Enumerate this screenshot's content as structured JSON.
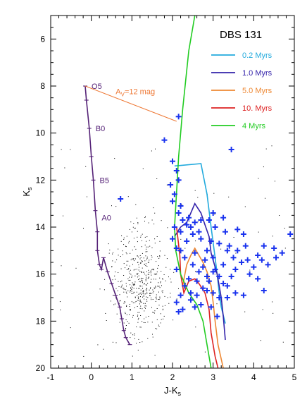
{
  "chart_data": {
    "type": "scatter",
    "title": "DBS 131",
    "xlabel": "J-K",
    "xlabel_sub": "s",
    "ylabel": "K",
    "ylabel_sub": "s",
    "xlim": [
      -1,
      5
    ],
    "ylim": [
      20,
      5
    ],
    "y_inverted": true,
    "xticks": [
      -1,
      0,
      1,
      2,
      3,
      4,
      5
    ],
    "yticks": [
      6,
      8,
      10,
      12,
      14,
      16,
      18,
      20
    ],
    "grid": false,
    "legend_position": "top-right",
    "series": [
      {
        "name": "0.2 Myrs",
        "color": "#22aadd",
        "kind": "isochrone",
        "points": [
          [
            2.05,
            11.4
          ],
          [
            2.7,
            11.3
          ],
          [
            2.85,
            12.6
          ],
          [
            2.95,
            14.0
          ],
          [
            3.05,
            15.3
          ],
          [
            3.1,
            16.0
          ],
          [
            3.15,
            16.8
          ],
          [
            3.2,
            17.4
          ],
          [
            3.3,
            18.1
          ]
        ]
      },
      {
        "name": "1.0 Myrs",
        "color": "#3322aa",
        "kind": "isochrone",
        "points": [
          [
            2.05,
            14.4
          ],
          [
            2.2,
            14.0
          ],
          [
            2.35,
            13.8
          ],
          [
            2.45,
            13.4
          ],
          [
            2.55,
            13.0
          ],
          [
            2.7,
            13.4
          ],
          [
            2.8,
            13.9
          ],
          [
            2.9,
            14.4
          ],
          [
            2.95,
            15.1
          ],
          [
            3.1,
            16.0
          ],
          [
            3.2,
            17.0
          ],
          [
            3.25,
            17.8
          ],
          [
            3.3,
            18.8
          ]
        ]
      },
      {
        "name": "5.0 Myrs",
        "color": "#ee8833",
        "kind": "isochrone",
        "points": [
          [
            2.25,
            16.5
          ],
          [
            2.35,
            15.6
          ],
          [
            2.45,
            15.2
          ],
          [
            2.55,
            14.9
          ],
          [
            2.65,
            15.2
          ],
          [
            2.75,
            15.5
          ],
          [
            2.85,
            15.9
          ],
          [
            2.95,
            16.5
          ],
          [
            3.0,
            17.2
          ],
          [
            3.05,
            18.0
          ],
          [
            3.12,
            19.0
          ],
          [
            3.25,
            20.0
          ]
        ]
      },
      {
        "name": "10. Myrs",
        "color": "#dd2222",
        "kind": "isochrone",
        "points": [
          [
            2.1,
            14.0
          ],
          [
            2.18,
            15.2
          ],
          [
            2.2,
            16.0
          ],
          [
            2.28,
            16.8
          ],
          [
            2.4,
            16.3
          ],
          [
            2.55,
            16.2
          ],
          [
            2.65,
            16.4
          ],
          [
            2.8,
            16.8
          ],
          [
            2.9,
            17.5
          ],
          [
            2.95,
            18.5
          ],
          [
            3.05,
            19.5
          ],
          [
            3.12,
            20.0
          ]
        ]
      },
      {
        "name": "4 Myrs",
        "color": "#22cc22",
        "kind": "isochrone",
        "points": [
          [
            2.55,
            5.0
          ],
          [
            2.4,
            6.5
          ],
          [
            2.25,
            9.0
          ],
          [
            2.15,
            11.0
          ],
          [
            2.1,
            12.5
          ],
          [
            2.05,
            14.0
          ],
          [
            2.08,
            15.0
          ],
          [
            2.2,
            16.0
          ],
          [
            2.4,
            16.8
          ],
          [
            2.6,
            17.3
          ],
          [
            2.75,
            18.0
          ],
          [
            2.85,
            19.0
          ],
          [
            2.95,
            20.0
          ]
        ]
      }
    ],
    "main_sequence": {
      "color": "#552277",
      "points": [
        [
          -0.15,
          8.0
        ],
        [
          -0.12,
          8.6
        ],
        [
          -0.05,
          9.8
        ],
        [
          0.0,
          11.0
        ],
        [
          0.05,
          12.0
        ],
        [
          0.1,
          13.3
        ],
        [
          0.15,
          14.2
        ],
        [
          0.15,
          15.0
        ],
        [
          0.2,
          15.6
        ],
        [
          0.25,
          15.8
        ],
        [
          0.3,
          15.3
        ],
        [
          0.4,
          15.9
        ],
        [
          0.5,
          16.4
        ],
        [
          0.6,
          16.9
        ],
        [
          0.7,
          17.4
        ],
        [
          0.75,
          17.9
        ],
        [
          0.8,
          18.4
        ],
        [
          0.85,
          18.7
        ],
        [
          0.95,
          19.0
        ]
      ],
      "spectral_labels": [
        {
          "text": "O5",
          "x": -0.15,
          "y": 8.0
        },
        {
          "text": "B0",
          "x": -0.05,
          "y": 9.8
        },
        {
          "text": "B5",
          "x": 0.05,
          "y": 12.0
        },
        {
          "text": "A0",
          "x": 0.1,
          "y": 13.6
        }
      ]
    },
    "reddening_vector": {
      "label": "A_V=12 mag",
      "label_main": "A",
      "label_sub": "V",
      "label_rest": "=12 mag",
      "color": "#ee7733",
      "start": [
        -0.15,
        8.0
      ],
      "end": [
        2.1,
        9.5
      ]
    },
    "cluster_members": {
      "color": "#1a33ee",
      "marker": "plus",
      "points": [
        [
          2.15,
          9.3
        ],
        [
          1.8,
          10.3
        ],
        [
          3.45,
          10.7
        ],
        [
          2.0,
          11.2
        ],
        [
          2.1,
          11.6
        ],
        [
          2.15,
          12.0
        ],
        [
          1.95,
          12.2
        ],
        [
          2.05,
          12.6
        ],
        [
          2.0,
          12.9
        ],
        [
          2.2,
          13.1
        ],
        [
          0.72,
          12.8
        ],
        [
          2.15,
          13.4
        ],
        [
          2.25,
          13.7
        ],
        [
          2.35,
          13.9
        ],
        [
          2.05,
          14.0
        ],
        [
          2.2,
          14.2
        ],
        [
          2.45,
          14.0
        ],
        [
          2.55,
          13.8
        ],
        [
          2.7,
          13.7
        ],
        [
          2.9,
          13.7
        ],
        [
          3.0,
          13.4
        ],
        [
          3.25,
          13.6
        ],
        [
          3.05,
          14.0
        ],
        [
          3.3,
          14.2
        ],
        [
          3.6,
          14.1
        ],
        [
          3.75,
          14.3
        ],
        [
          4.25,
          14.8
        ],
        [
          4.5,
          14.9
        ],
        [
          4.9,
          14.3
        ],
        [
          4.7,
          15.1
        ],
        [
          4.55,
          15.3
        ],
        [
          4.35,
          15.6
        ],
        [
          4.1,
          15.2
        ],
        [
          4.0,
          15.7
        ],
        [
          3.9,
          16.0
        ],
        [
          4.1,
          16.2
        ],
        [
          3.7,
          15.5
        ],
        [
          3.55,
          15.8
        ],
        [
          3.45,
          16.1
        ],
        [
          3.35,
          16.5
        ],
        [
          3.25,
          16.4
        ],
        [
          3.15,
          16.1
        ],
        [
          3.05,
          15.8
        ],
        [
          3.0,
          15.3
        ],
        [
          2.85,
          15.0
        ],
        [
          2.7,
          14.5
        ],
        [
          2.8,
          15.4
        ],
        [
          2.65,
          15.9
        ],
        [
          2.5,
          15.6
        ],
        [
          2.4,
          16.2
        ],
        [
          2.3,
          16.5
        ],
        [
          2.2,
          16.9
        ],
        [
          2.1,
          17.2
        ],
        [
          2.15,
          17.6
        ],
        [
          2.25,
          17.5
        ],
        [
          2.45,
          17.1
        ],
        [
          2.6,
          16.9
        ],
        [
          2.75,
          16.6
        ],
        [
          2.9,
          16.3
        ],
        [
          3.0,
          16.8
        ],
        [
          3.15,
          17.0
        ],
        [
          3.35,
          17.0
        ],
        [
          3.55,
          16.8
        ],
        [
          3.75,
          16.9
        ],
        [
          2.55,
          17.4
        ],
        [
          2.7,
          17.3
        ],
        [
          2.95,
          17.4
        ],
        [
          3.1,
          17.8
        ],
        [
          2.3,
          15.3
        ],
        [
          2.2,
          15.0
        ],
        [
          2.35,
          14.6
        ],
        [
          2.5,
          14.3
        ],
        [
          2.95,
          14.6
        ],
        [
          3.15,
          14.7
        ],
        [
          3.4,
          14.8
        ],
        [
          3.6,
          15.0
        ],
        [
          3.8,
          14.8
        ],
        [
          2.6,
          16.3
        ],
        [
          2.45,
          16.8
        ],
        [
          4.25,
          16.7
        ],
        [
          2.75,
          15.7
        ],
        [
          2.1,
          15.8
        ],
        [
          2.1,
          14.9
        ],
        [
          2.0,
          14.5
        ],
        [
          3.5,
          15.3
        ],
        [
          3.25,
          15.6
        ],
        [
          3.35,
          15.0
        ],
        [
          2.85,
          16.1
        ],
        [
          2.55,
          15.1
        ],
        [
          2.4,
          13.6
        ],
        [
          2.65,
          14.2
        ],
        [
          3.85,
          15.4
        ],
        [
          4.2,
          15.4
        ],
        [
          3.0,
          15.9
        ],
        [
          2.85,
          16.7
        ]
      ]
    },
    "field_stars": {
      "color": "#000000",
      "marker": "dot",
      "note": "field_density_only"
    }
  }
}
